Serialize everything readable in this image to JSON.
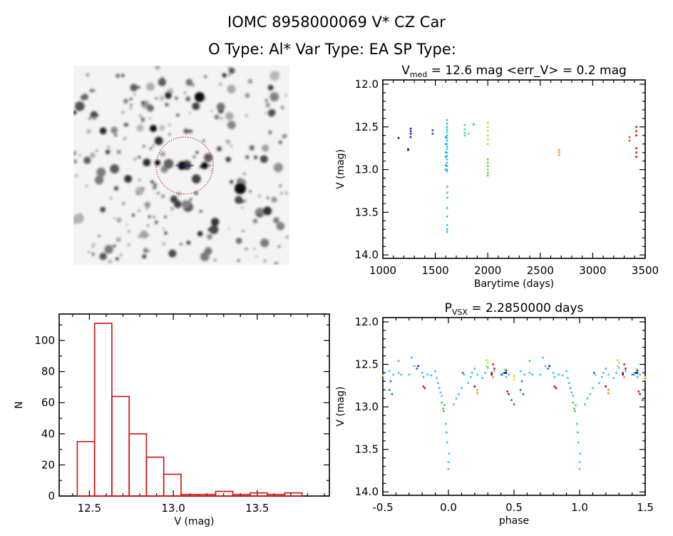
{
  "header": {
    "title": "IOMC 8958000069    V* CZ Car",
    "subtitle": "O Type: Al*  Var Type: EA  SP Type:"
  },
  "finder_image": {
    "description_colors": {
      "circle": "#c01010",
      "marker": "#1a1a80"
    }
  },
  "chart_data": [
    {
      "id": "light_curve",
      "type": "scatter",
      "title_main": "V",
      "title_sub": "med",
      "title_rest": " = 12.6 mag <err_V> = 0.2 mag",
      "xlabel": "Barytime (days)",
      "ylabel": "V (mag)",
      "xlim": [
        1000,
        3500
      ],
      "ylim": [
        11.95,
        14.04
      ],
      "y_inverted": true,
      "xticks": [
        "1000",
        "1500",
        "2000",
        "2500",
        "3000",
        "3500"
      ],
      "yticks": [
        "12.0",
        "12.5",
        "13.0",
        "13.5",
        "14.0"
      ],
      "series": [
        {
          "color": "#2a0a6e",
          "points": [
            [
              1150,
              12.63
            ]
          ]
        },
        {
          "color": "#4010a0",
          "points": [
            [
              1240,
              12.76
            ],
            [
              1242,
              12.77
            ]
          ]
        },
        {
          "color": "#2020c0",
          "points": [
            [
              1265,
              12.52
            ],
            [
              1265,
              12.55
            ],
            [
              1266,
              12.58
            ],
            [
              1265,
              12.62
            ]
          ]
        },
        {
          "color": "#1a4ac8",
          "points": [
            [
              1475,
              12.54
            ],
            [
              1475,
              12.58
            ]
          ]
        },
        {
          "color": "#1a90e0",
          "points": [
            [
              1600,
              12.62
            ],
            [
              1600,
              12.7
            ],
            [
              1602,
              12.8
            ],
            [
              1600,
              12.85
            ],
            [
              1601,
              12.95
            ],
            [
              1600,
              13.0
            ]
          ]
        },
        {
          "color": "#28c4ec",
          "points": [
            [
              1612,
              12.42
            ],
            [
              1612,
              12.46
            ],
            [
              1610,
              12.5
            ],
            [
              1613,
              12.53
            ],
            [
              1611,
              12.56
            ],
            [
              1612,
              12.6
            ],
            [
              1609,
              12.63
            ],
            [
              1613,
              12.66
            ],
            [
              1611,
              12.7
            ],
            [
              1612,
              12.73
            ],
            [
              1610,
              12.76
            ],
            [
              1613,
              12.8
            ],
            [
              1611,
              12.84
            ],
            [
              1612,
              12.88
            ],
            [
              1610,
              12.92
            ],
            [
              1613,
              12.96
            ],
            [
              1611,
              13.0
            ],
            [
              1612,
              13.02
            ],
            [
              1614,
              13.2
            ],
            [
              1613,
              13.27
            ],
            [
              1614,
              13.33
            ],
            [
              1613,
              13.45
            ],
            [
              1612,
              13.55
            ],
            [
              1613,
              13.65
            ],
            [
              1613,
              13.7
            ],
            [
              1613,
              13.73
            ]
          ]
        },
        {
          "color": "#30e0b0",
          "points": [
            [
              1780,
              12.48
            ],
            [
              1780,
              12.53
            ],
            [
              1781,
              12.57
            ],
            [
              1780,
              12.6
            ],
            [
              1820,
              12.58
            ]
          ]
        },
        {
          "color": "#30d040",
          "points": [
            [
              1862,
              12.47
            ],
            [
              1866,
              12.47
            ]
          ]
        },
        {
          "color": "#b8e030",
          "points": [
            [
              2000,
              12.45
            ],
            [
              2000,
              12.5
            ],
            [
              2001,
              12.55
            ],
            [
              2000,
              12.6
            ],
            [
              2001,
              12.65
            ],
            [
              2000,
              12.7
            ]
          ]
        },
        {
          "color": "#60d840",
          "points": [
            [
              2000,
              12.88
            ],
            [
              2000,
              12.92
            ],
            [
              2001,
              12.96
            ],
            [
              2000,
              13.0
            ],
            [
              2001,
              13.04
            ],
            [
              2000,
              13.07
            ]
          ]
        },
        {
          "color": "#f0a020",
          "points": [
            [
              2680,
              12.77
            ],
            [
              2680,
              12.8
            ],
            [
              2680,
              12.83
            ]
          ]
        },
        {
          "color": "#e05010",
          "points": [
            [
              3350,
              12.62
            ],
            [
              3350,
              12.66
            ]
          ]
        },
        {
          "color": "#d01010",
          "points": [
            [
              3415,
              12.5
            ],
            [
              3415,
              12.55
            ],
            [
              3415,
              12.6
            ],
            [
              3416,
              12.75
            ],
            [
              3415,
              12.8
            ],
            [
              3416,
              12.85
            ]
          ]
        }
      ]
    },
    {
      "id": "histogram",
      "type": "bar",
      "xlabel": "V (mag)",
      "ylabel": "N",
      "xlim": [
        12.32,
        13.93
      ],
      "ylim": [
        0,
        117
      ],
      "xticks": [
        "12.5",
        "13.0",
        "13.5"
      ],
      "yticks": [
        "0",
        "20",
        "40",
        "60",
        "80",
        "100"
      ],
      "bar_color": "#d01010",
      "bin_start": 12.428,
      "bin_width": 0.103,
      "values": [
        35,
        111,
        64,
        40,
        25,
        14,
        1,
        1,
        3,
        1,
        2,
        1,
        2
      ]
    },
    {
      "id": "phase_curve",
      "type": "scatter",
      "title_main": "P",
      "title_sub": "VSX",
      "title_rest": " = 2.2850000 days",
      "xlabel": "phase",
      "ylabel": "V (mag)",
      "xlim": [
        -0.5,
        1.5
      ],
      "ylim": [
        11.95,
        14.04
      ],
      "y_inverted": true,
      "phase_repeat": 1,
      "xticks": [
        "-0.5",
        "0.0",
        "0.5",
        "1.0",
        "1.5"
      ],
      "yticks": [
        "12.0",
        "12.5",
        "13.0",
        "13.5",
        "14.0"
      ],
      "series": [
        {
          "color": "#30c8e8",
          "points": [
            [
              -0.45,
              12.58
            ],
            [
              -0.42,
              12.62
            ],
            [
              -0.38,
              12.6
            ],
            [
              -0.36,
              12.62
            ],
            [
              -0.3,
              12.62
            ],
            [
              -0.28,
              12.42
            ],
            [
              -0.26,
              12.52
            ],
            [
              -0.2,
              12.6
            ],
            [
              -0.19,
              12.65
            ],
            [
              -0.16,
              12.62
            ],
            [
              -0.13,
              12.63
            ],
            [
              -0.1,
              12.58
            ],
            [
              -0.09,
              12.66
            ],
            [
              -0.08,
              12.72
            ],
            [
              -0.07,
              12.78
            ],
            [
              -0.06,
              12.83
            ],
            [
              -0.05,
              12.87
            ],
            [
              -0.03,
              12.98
            ],
            [
              -0.02,
              13.2
            ],
            [
              -0.015,
              13.3
            ],
            [
              -0.01,
              13.42
            ],
            [
              0.005,
              13.55
            ],
            [
              0.0,
              13.65
            ],
            [
              0.0,
              13.73
            ],
            [
              0.04,
              12.97
            ],
            [
              0.06,
              12.9
            ],
            [
              0.08,
              12.85
            ],
            [
              0.1,
              12.78
            ],
            [
              0.15,
              12.72
            ],
            [
              0.17,
              12.65
            ],
            [
              0.18,
              12.6
            ],
            [
              0.2,
              12.55
            ],
            [
              0.22,
              12.62
            ],
            [
              0.26,
              12.66
            ],
            [
              0.28,
              12.6
            ],
            [
              0.3,
              12.54
            ],
            [
              0.35,
              12.58
            ],
            [
              0.4,
              12.62
            ],
            [
              0.42,
              12.6
            ],
            [
              0.44,
              12.65
            ],
            [
              0.46,
              12.62
            ],
            [
              0.12,
              12.62
            ]
          ]
        },
        {
          "color": "#1a70d8",
          "points": [
            [
              -0.45,
              12.8
            ],
            [
              -0.43,
              12.85
            ],
            [
              -0.44,
              12.7
            ],
            [
              0.11,
              12.6
            ],
            [
              0.41,
              12.62
            ],
            [
              0.48,
              12.92
            ],
            [
              0.5,
              12.97
            ],
            [
              -0.24,
              12.55
            ]
          ]
        },
        {
          "color": "#1020a0",
          "points": [
            [
              -0.23,
              12.52
            ],
            [
              0.44,
              12.57
            ],
            [
              0.43,
              12.6
            ]
          ]
        },
        {
          "color": "#301070",
          "points": [
            [
              0.2,
              12.76
            ],
            [
              0.33,
              12.62
            ],
            [
              0.44,
              12.6
            ]
          ]
        },
        {
          "color": "#40d040",
          "points": [
            [
              -0.38,
              12.46
            ],
            [
              -0.05,
              12.95
            ],
            [
              -0.04,
              13.02
            ],
            [
              -0.035,
              13.05
            ]
          ]
        },
        {
          "color": "#b8e040",
          "points": [
            [
              0.29,
              12.45
            ],
            [
              0.3,
              12.48
            ],
            [
              0.29,
              12.52
            ],
            [
              0.43,
              12.56
            ]
          ]
        },
        {
          "color": "#f0e020",
          "points": [
            [
              -0.5,
              12.63
            ],
            [
              0.5,
              12.65
            ],
            [
              0.5,
              12.68
            ]
          ]
        },
        {
          "color": "#f09020",
          "points": [
            [
              0.22,
              12.8
            ],
            [
              0.22,
              12.84
            ],
            [
              0.34,
              12.65
            ]
          ]
        },
        {
          "color": "#d01010",
          "points": [
            [
              -0.19,
              12.76
            ],
            [
              -0.18,
              12.78
            ],
            [
              0.34,
              12.5
            ],
            [
              0.35,
              12.55
            ],
            [
              0.33,
              12.6
            ],
            [
              0.45,
              12.82
            ],
            [
              0.46,
              12.85
            ]
          ]
        }
      ]
    }
  ]
}
